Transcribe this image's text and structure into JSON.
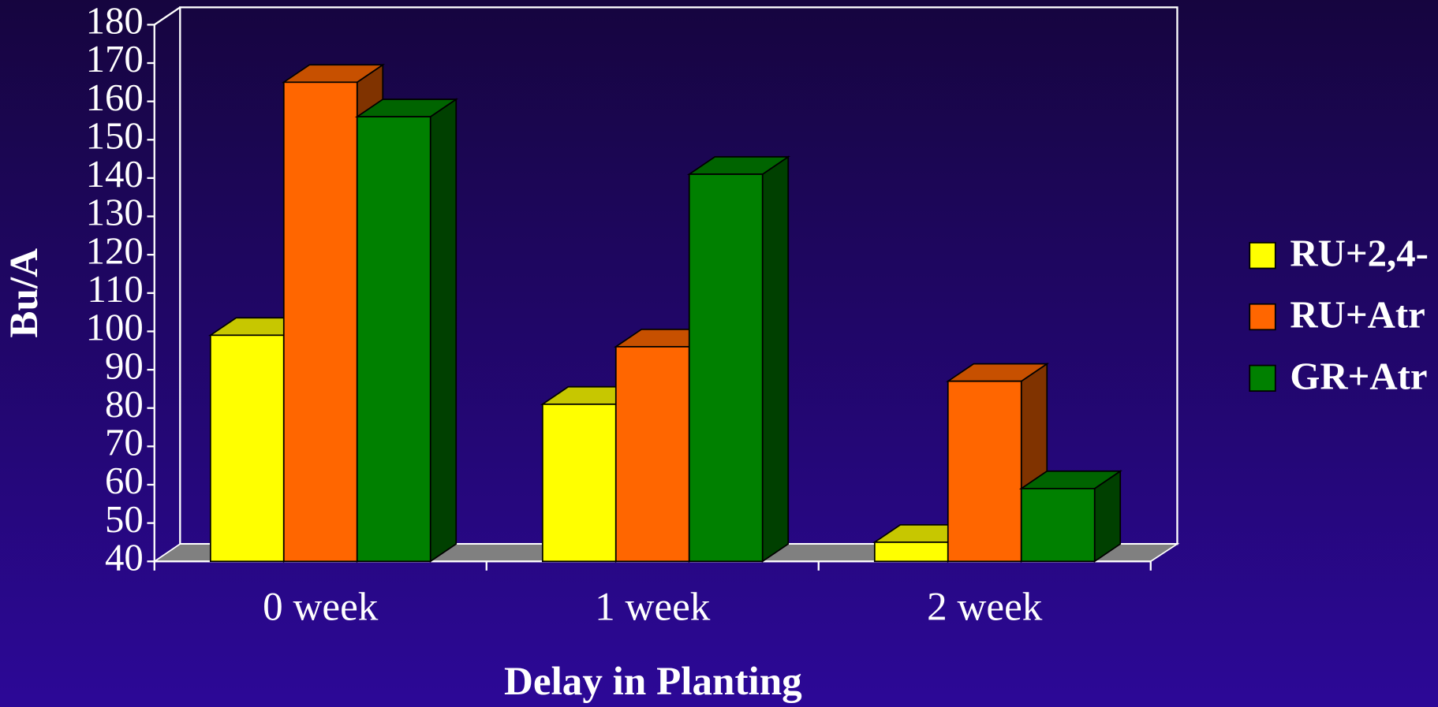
{
  "chart_data": {
    "type": "bar3d",
    "x_label": "Delay in Planting",
    "y_label": "Bu/A",
    "categories": [
      "0 week",
      "1 week",
      "2 week"
    ],
    "series": [
      {
        "name": "RU+2,4-",
        "color": "#ffff00",
        "values": [
          99,
          81,
          45
        ]
      },
      {
        "name": "RU+Atr",
        "color": "#ff6600",
        "values": [
          165,
          96,
          87
        ]
      },
      {
        "name": "GR+Atr",
        "color": "#008000",
        "values": [
          156,
          141,
          59
        ]
      }
    ],
    "ylim": [
      40,
      180
    ],
    "yticks": [
      40,
      50,
      60,
      70,
      80,
      90,
      100,
      110,
      120,
      130,
      140,
      150,
      160,
      170,
      180
    ],
    "grid": false,
    "legend": "right"
  }
}
